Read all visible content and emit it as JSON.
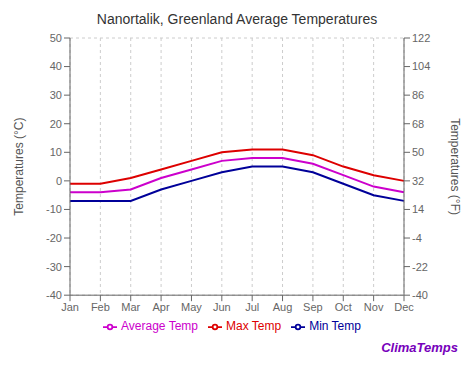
{
  "chart_data": {
    "type": "line",
    "title": "Nanortalik, Greenland Average Temperatures",
    "categories": [
      "Jan",
      "Feb",
      "Mar",
      "Apr",
      "May",
      "Jun",
      "Jul",
      "Aug",
      "Sep",
      "Oct",
      "Nov",
      "Dec"
    ],
    "series": [
      {
        "name": "Max Temp",
        "color": "#dd0000",
        "values": [
          -1,
          -1,
          1,
          4,
          7,
          10,
          11,
          11,
          9,
          5,
          2,
          0
        ]
      },
      {
        "name": "Average Temp",
        "color": "#cc00cc",
        "values": [
          -4,
          -4,
          -3,
          1,
          4,
          7,
          8,
          8,
          6,
          2,
          -2,
          -4
        ]
      },
      {
        "name": "Min Temp",
        "color": "#000099",
        "values": [
          -7,
          -7,
          -7,
          -3,
          0,
          3,
          5,
          5,
          3,
          -1,
          -5,
          -7
        ]
      }
    ],
    "ylabel": "Temperatures (°C)",
    "y2label": "Temperatures (°F)",
    "ylim": [
      -40,
      50
    ],
    "yticks": [
      -40,
      -30,
      -20,
      -10,
      0,
      10,
      20,
      30,
      40,
      50
    ],
    "y2lim": [
      -40.0,
      122.0
    ],
    "y2ticks": [
      -40.0,
      -22.0,
      -4.0,
      14.0,
      32.0,
      50.0,
      68.0,
      86.0,
      104.0,
      122.0
    ],
    "grid": true,
    "legend": "bottom",
    "annotations": [
      {
        "text": "ClimaTemps",
        "color": "#7700bb"
      }
    ]
  }
}
